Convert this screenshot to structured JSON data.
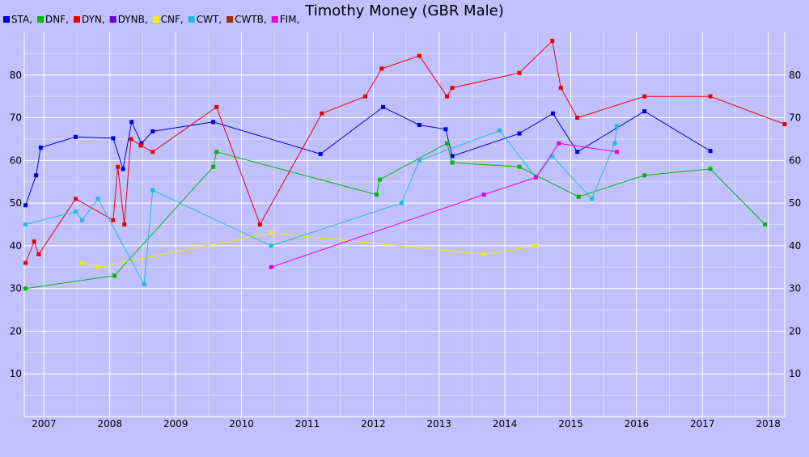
{
  "chart_data": {
    "type": "line",
    "title": "Timothy Money (GBR Male)",
    "xlabel": "",
    "ylabel": "",
    "xlim": [
      2006.7,
      2018.25
    ],
    "ylim": [
      0,
      90
    ],
    "x_ticks": [
      2007,
      2008,
      2009,
      2010,
      2011,
      2012,
      2013,
      2014,
      2015,
      2016,
      2017,
      2018
    ],
    "y_ticks": [
      10,
      20,
      30,
      40,
      50,
      60,
      70,
      80
    ],
    "grid": true,
    "legend": "top-left",
    "series": [
      {
        "name": "STA,",
        "color": "#0000dd",
        "points": [
          [
            2006.72,
            49.5
          ],
          [
            2006.88,
            56.5
          ],
          [
            2006.95,
            63
          ],
          [
            2007.48,
            65.5
          ],
          [
            2008.05,
            65.2
          ],
          [
            2008.2,
            58
          ],
          [
            2008.33,
            69
          ],
          [
            2008.48,
            64
          ],
          [
            2008.65,
            66.8
          ],
          [
            2009.57,
            69
          ],
          [
            2011.2,
            61.5
          ],
          [
            2012.15,
            72.5
          ],
          [
            2012.7,
            68.3
          ],
          [
            2013.1,
            67.3
          ],
          [
            2013.2,
            61
          ],
          [
            2014.22,
            66.3
          ],
          [
            2014.73,
            71
          ],
          [
            2015.1,
            62
          ],
          [
            2016.12,
            71.5
          ],
          [
            2017.12,
            62.2
          ]
        ]
      },
      {
        "name": "DNF,",
        "color": "#00bb00",
        "points": [
          [
            2006.72,
            30
          ],
          [
            2008.07,
            33
          ],
          [
            2009.57,
            58.5
          ],
          [
            2009.62,
            62
          ],
          [
            2012.05,
            52
          ],
          [
            2012.1,
            55.5
          ],
          [
            2013.12,
            64
          ],
          [
            2013.2,
            59.5
          ],
          [
            2014.22,
            58.5
          ],
          [
            2015.12,
            51.5
          ],
          [
            2016.12,
            56.5
          ],
          [
            2017.12,
            58
          ],
          [
            2017.95,
            45
          ]
        ]
      },
      {
        "name": "DYN,",
        "color": "#ee0000",
        "points": [
          [
            2006.72,
            36
          ],
          [
            2006.85,
            41
          ],
          [
            2006.92,
            38
          ],
          [
            2007.48,
            51
          ],
          [
            2008.05,
            46
          ],
          [
            2008.12,
            58.5
          ],
          [
            2008.22,
            45
          ],
          [
            2008.32,
            65
          ],
          [
            2008.47,
            63.5
          ],
          [
            2008.65,
            62
          ],
          [
            2009.62,
            72.5
          ],
          [
            2010.28,
            45
          ],
          [
            2011.22,
            71
          ],
          [
            2011.88,
            75
          ],
          [
            2012.13,
            81.5
          ],
          [
            2012.7,
            84.5
          ],
          [
            2013.12,
            75
          ],
          [
            2013.2,
            77
          ],
          [
            2014.22,
            80.5
          ],
          [
            2014.72,
            88
          ],
          [
            2014.85,
            77
          ],
          [
            2015.1,
            70
          ],
          [
            2016.12,
            75
          ],
          [
            2017.12,
            75
          ],
          [
            2018.25,
            68.5
          ]
        ]
      },
      {
        "name": "DYNB,",
        "color": "#6600dd",
        "points": []
      },
      {
        "name": "CNF,",
        "color": "#eeee00",
        "points": [
          [
            2007.58,
            36
          ],
          [
            2007.82,
            35
          ],
          [
            2010.45,
            43
          ],
          [
            2013.68,
            38
          ],
          [
            2014.47,
            40
          ]
        ]
      },
      {
        "name": "CWT,",
        "color": "#22bbdd",
        "points": [
          [
            2006.72,
            45
          ],
          [
            2007.48,
            48
          ],
          [
            2007.58,
            46
          ],
          [
            2007.82,
            51
          ],
          [
            2008.52,
            31
          ],
          [
            2008.65,
            53
          ],
          [
            2010.45,
            40
          ],
          [
            2012.43,
            50
          ],
          [
            2012.7,
            60
          ],
          [
            2013.92,
            67
          ],
          [
            2014.47,
            56
          ],
          [
            2014.72,
            61
          ],
          [
            2015.32,
            51
          ],
          [
            2015.67,
            64
          ],
          [
            2015.7,
            68
          ]
        ]
      },
      {
        "name": "CWTB,",
        "color": "#993300",
        "points": []
      },
      {
        "name": "FIM,",
        "color": "#ee00dd",
        "points": [
          [
            2010.45,
            35
          ],
          [
            2013.68,
            52
          ],
          [
            2014.47,
            56
          ],
          [
            2014.82,
            64
          ],
          [
            2015.7,
            62
          ]
        ]
      }
    ]
  }
}
